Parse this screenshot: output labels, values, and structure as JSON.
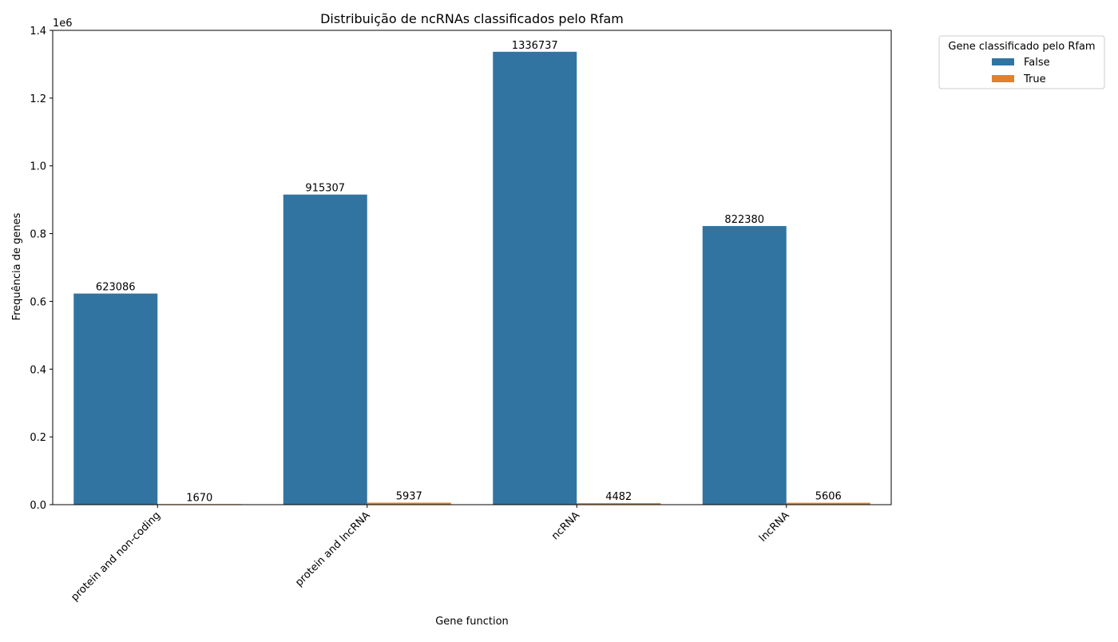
{
  "chart_data": {
    "type": "bar",
    "title": "Distribuição de ncRNAs classificados pelo Rfam",
    "xlabel": "Gene function",
    "ylabel": "Frequência de genes",
    "y_offset_label": "1e6",
    "y_scale_factor": 1000000,
    "ylim": [
      0,
      1400000
    ],
    "yticks": [
      0,
      200000,
      400000,
      600000,
      800000,
      1000000,
      1200000,
      1400000
    ],
    "ytick_labels": [
      "0.0",
      "0.2",
      "0.4",
      "0.6",
      "0.8",
      "1.0",
      "1.2",
      "1.4"
    ],
    "categories": [
      "protein and non-coding",
      "protein and lncRNA",
      "ncRNA",
      "lncRNA"
    ],
    "series": [
      {
        "name": "False",
        "color": "#3274a1",
        "values": [
          623086,
          915307,
          1336737,
          822380
        ]
      },
      {
        "name": "True",
        "color": "#e1812c",
        "values": [
          1670,
          5937,
          4482,
          5606
        ]
      }
    ],
    "data_labels": [
      [
        "623086",
        "915307",
        "1336737",
        "822380"
      ],
      [
        "1670",
        "5937",
        "4482",
        "5606"
      ]
    ],
    "grid": false,
    "legend": {
      "title": "Gene classificado pelo Rfam",
      "placement": "outside-top-right"
    },
    "xtick_rotation_deg": 45
  }
}
